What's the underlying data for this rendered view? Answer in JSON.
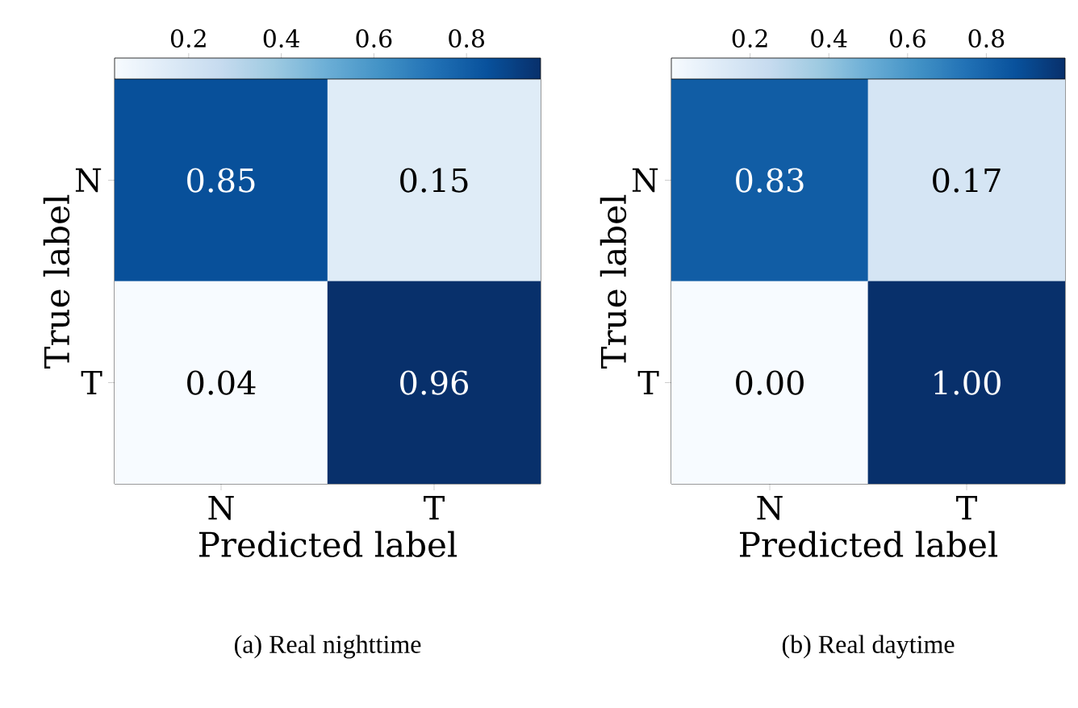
{
  "chart_data": [
    {
      "type": "heatmap",
      "categories": [
        "N",
        "T"
      ],
      "y_categories": [
        "N",
        "T"
      ],
      "cells": [
        [
          0.85,
          0.15
        ],
        [
          0.04,
          0.96
        ]
      ],
      "cell_labels": [
        [
          "0.85",
          "0.15"
        ],
        [
          "0.04",
          "0.96"
        ]
      ],
      "clim": [
        0.04,
        0.96
      ],
      "cticks": [
        0.2,
        0.4,
        0.6,
        0.8
      ],
      "xlabel": "Predicted label",
      "ylabel": "True label",
      "annotations": [
        "(a) Real nighttime"
      ]
    },
    {
      "type": "heatmap",
      "categories": [
        "N",
        "T"
      ],
      "y_categories": [
        "N",
        "T"
      ],
      "cells": [
        [
          0.83,
          0.17
        ],
        [
          0.0,
          1.0
        ]
      ],
      "cell_labels": [
        [
          "0.83",
          "0.17"
        ],
        [
          "0.00",
          "1.00"
        ]
      ],
      "clim": [
        0.0,
        1.0
      ],
      "cticks": [
        0.2,
        0.4,
        0.6,
        0.8
      ],
      "xlabel": "Predicted label",
      "ylabel": "True label",
      "annotations": [
        "(b) Real daytime"
      ]
    }
  ]
}
